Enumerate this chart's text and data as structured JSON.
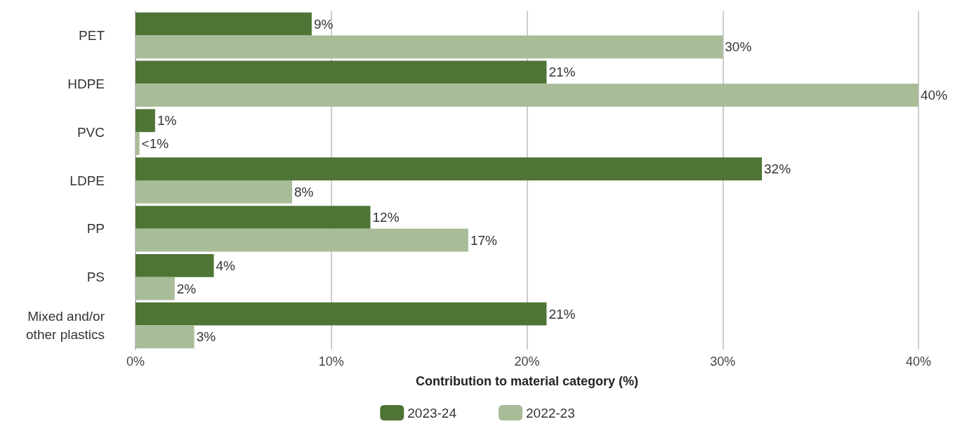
{
  "chart_data": {
    "type": "bar",
    "orientation": "horizontal",
    "xlabel": "Contribution to material category (%)",
    "categories": [
      "PET",
      "HDPE",
      "PVC",
      "LDPE",
      "PP",
      "PS",
      "Mixed and/or\nother plastics"
    ],
    "series": [
      {
        "name": "2023-24",
        "color": "#4e7535",
        "values": [
          9,
          21,
          1,
          32,
          12,
          4,
          21
        ],
        "value_labels": [
          "9%",
          "21%",
          "1%",
          "32%",
          "12%",
          "4%",
          "21%"
        ]
      },
      {
        "name": "2022-23",
        "color": "#a8bc98",
        "values": [
          30,
          40,
          0.2,
          8,
          17,
          2,
          3
        ],
        "value_labels": [
          "30%",
          "40%",
          "<1%",
          "8%",
          "17%",
          "2%",
          "3%"
        ]
      }
    ],
    "xlim": [
      0,
      40
    ],
    "xticks": [
      {
        "value": 0,
        "label": "0%"
      },
      {
        "value": 10,
        "label": "10%"
      },
      {
        "value": 20,
        "label": "20%"
      },
      {
        "value": 30,
        "label": "30%"
      },
      {
        "value": 40,
        "label": "40%"
      }
    ],
    "grid": "x",
    "legend": "bottom"
  }
}
